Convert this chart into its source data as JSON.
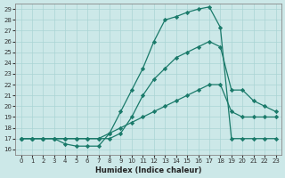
{
  "xlabel": "Humidex (Indice chaleur)",
  "bg_color": "#cce8e8",
  "line_color": "#1a7a6a",
  "grid_color": "#aad4d4",
  "xlim": [
    -0.5,
    23.5
  ],
  "ylim": [
    15.5,
    29.5
  ],
  "xticks": [
    0,
    1,
    2,
    3,
    4,
    5,
    6,
    7,
    8,
    9,
    10,
    11,
    12,
    13,
    14,
    15,
    16,
    17,
    18,
    19,
    20,
    21,
    22,
    23
  ],
  "yticks": [
    16,
    17,
    18,
    19,
    20,
    21,
    22,
    23,
    24,
    25,
    26,
    27,
    28,
    29
  ],
  "series1_x": [
    0,
    1,
    2,
    3,
    4,
    5,
    6,
    7,
    8,
    9,
    10,
    11,
    12,
    13,
    14,
    15,
    16,
    17,
    18,
    19,
    20,
    21,
    22,
    23
  ],
  "series1_y": [
    17,
    17,
    17,
    17,
    16.5,
    16.3,
    16.3,
    16.3,
    17.5,
    19.5,
    21.5,
    23.5,
    26,
    28,
    28.3,
    28.7,
    29,
    29.2,
    27.3,
    17,
    17,
    17,
    17,
    17
  ],
  "series2_x": [
    0,
    1,
    2,
    3,
    4,
    5,
    6,
    7,
    8,
    9,
    10,
    11,
    12,
    13,
    14,
    15,
    16,
    17,
    18,
    19,
    20,
    21,
    22,
    23
  ],
  "series2_y": [
    17,
    17,
    17,
    17,
    17,
    17,
    17,
    17,
    17,
    17.5,
    19,
    21,
    22.5,
    23.5,
    24.5,
    25,
    25.5,
    26,
    25.5,
    21.5,
    21.5,
    20.5,
    20,
    19.5
  ],
  "series3_x": [
    0,
    1,
    2,
    3,
    4,
    5,
    6,
    7,
    8,
    9,
    10,
    11,
    12,
    13,
    14,
    15,
    16,
    17,
    18,
    19,
    20,
    21,
    22,
    23
  ],
  "series3_y": [
    17,
    17,
    17,
    17,
    17,
    17,
    17,
    17,
    17.5,
    18,
    18.5,
    19,
    19.5,
    20,
    20.5,
    21,
    21.5,
    22,
    22,
    19.5,
    19,
    19,
    19,
    19
  ]
}
